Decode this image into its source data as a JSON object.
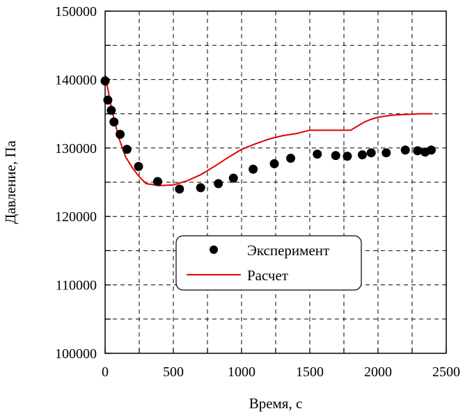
{
  "chart_data": {
    "type": "scatter",
    "title": "",
    "xlabel": "Время, с",
    "ylabel": "Давление, Па",
    "xlim": [
      0,
      2500
    ],
    "ylim": [
      100000,
      150000
    ],
    "xticks": [
      0,
      500,
      1000,
      1500,
      2000,
      2500
    ],
    "yticks": [
      100000,
      110000,
      120000,
      130000,
      140000,
      150000
    ],
    "grid": true,
    "legend_position": "center",
    "series": [
      {
        "name": "Эксперимент",
        "type": "scatter",
        "color": "#000000",
        "x": [
          0,
          20,
          45,
          65,
          110,
          160,
          245,
          385,
          545,
          700,
          830,
          940,
          1085,
          1240,
          1360,
          1555,
          1690,
          1775,
          1885,
          1950,
          2060,
          2200,
          2290,
          2345,
          2390
        ],
        "y": [
          139800,
          137000,
          135500,
          133800,
          132000,
          129800,
          127300,
          125100,
          124000,
          124200,
          124800,
          125600,
          126900,
          127700,
          128500,
          129100,
          128900,
          128800,
          129000,
          129300,
          129300,
          129700,
          129600,
          129400,
          129700
        ]
      },
      {
        "name": "Расчет",
        "type": "line",
        "color": "#e00000",
        "x": [
          0,
          50,
          100,
          150,
          200,
          250,
          300,
          400,
          500,
          600,
          700,
          800,
          900,
          1000,
          1100,
          1200,
          1300,
          1400,
          1500,
          1600,
          1700,
          1800,
          1900,
          1950,
          2000,
          2100,
          2200,
          2300,
          2400
        ],
        "y": [
          140700,
          135500,
          131500,
          128700,
          127100,
          125800,
          124800,
          124500,
          124600,
          125200,
          126100,
          127300,
          128600,
          129800,
          130600,
          131300,
          131800,
          132100,
          132600,
          132600,
          132600,
          132600,
          133800,
          134200,
          134500,
          134800,
          134900,
          135000,
          135000
        ]
      }
    ]
  }
}
